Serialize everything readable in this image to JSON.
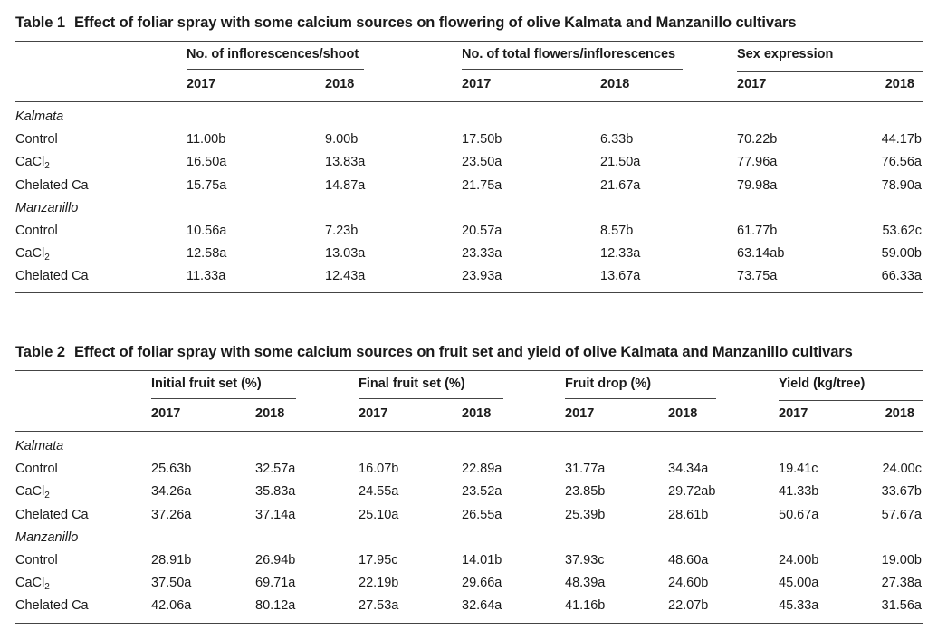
{
  "table1": {
    "caption_num": "Table 1",
    "caption_text": "Effect of foliar spray with some calcium sources on flowering of olive Kalmata and Manzanillo cultivars",
    "groups": [
      "No. of inflorescences/shoot",
      "No. of total flowers/inflorescences",
      "Sex expression"
    ],
    "years": [
      "2017",
      "2018"
    ],
    "cultivars": [
      {
        "name": "Kalmata",
        "rows": [
          {
            "label": "Control",
            "values": [
              "11.00b",
              "9.00b",
              "17.50b",
              "6.33b",
              "70.22b",
              "44.17b"
            ]
          },
          {
            "label": "CaCl2",
            "values": [
              "16.50a",
              "13.83a",
              "23.50a",
              "21.50a",
              "77.96a",
              "76.56a"
            ]
          },
          {
            "label": "Chelated Ca",
            "values": [
              "15.75a",
              "14.87a",
              "21.75a",
              "21.67a",
              "79.98a",
              "78.90a"
            ]
          }
        ]
      },
      {
        "name": "Manzanillo",
        "rows": [
          {
            "label": "Control",
            "values": [
              "10.56a",
              "7.23b",
              "20.57a",
              "8.57b",
              "61.77b",
              "53.62c"
            ]
          },
          {
            "label": "CaCl2",
            "values": [
              "12.58a",
              "13.03a",
              "23.33a",
              "12.33a",
              "63.14ab",
              "59.00b"
            ]
          },
          {
            "label": "Chelated Ca",
            "values": [
              "11.33a",
              "12.43a",
              "23.93a",
              "13.67a",
              "73.75a",
              "66.33a"
            ]
          }
        ]
      }
    ]
  },
  "table2": {
    "caption_num": "Table 2",
    "caption_text": "Effect of foliar spray with some calcium sources on fruit set and yield of olive Kalmata and Manzanillo cultivars",
    "groups": [
      "Initial fruit set (%)",
      "Final fruit set (%)",
      "Fruit drop (%)",
      "Yield (kg/tree)"
    ],
    "years": [
      "2017",
      "2018"
    ],
    "cultivars": [
      {
        "name": "Kalmata",
        "rows": [
          {
            "label": "Control",
            "values": [
              "25.63b",
              "32.57a",
              "16.07b",
              "22.89a",
              "31.77a",
              "34.34a",
              "19.41c",
              "24.00c"
            ]
          },
          {
            "label": "CaCl2",
            "values": [
              "34.26a",
              "35.83a",
              "24.55a",
              "23.52a",
              "23.85b",
              "29.72ab",
              "41.33b",
              "33.67b"
            ]
          },
          {
            "label": "Chelated Ca",
            "values": [
              "37.26a",
              "37.14a",
              "25.10a",
              "26.55a",
              "25.39b",
              "28.61b",
              "50.67a",
              "57.67a"
            ]
          }
        ]
      },
      {
        "name": "Manzanillo",
        "rows": [
          {
            "label": "Control",
            "values": [
              "28.91b",
              "26.94b",
              "17.95c",
              "14.01b",
              "37.93c",
              "48.60a",
              "24.00b",
              "19.00b"
            ]
          },
          {
            "label": "CaCl2",
            "values": [
              "37.50a",
              "69.71a",
              "22.19b",
              "29.66a",
              "48.39a",
              "24.60b",
              "45.00a",
              "27.38a"
            ]
          },
          {
            "label": "Chelated Ca",
            "values": [
              "42.06a",
              "80.12a",
              "27.53a",
              "32.64a",
              "41.16b",
              "22.07b",
              "45.33a",
              "31.56a"
            ]
          }
        ]
      }
    ]
  }
}
